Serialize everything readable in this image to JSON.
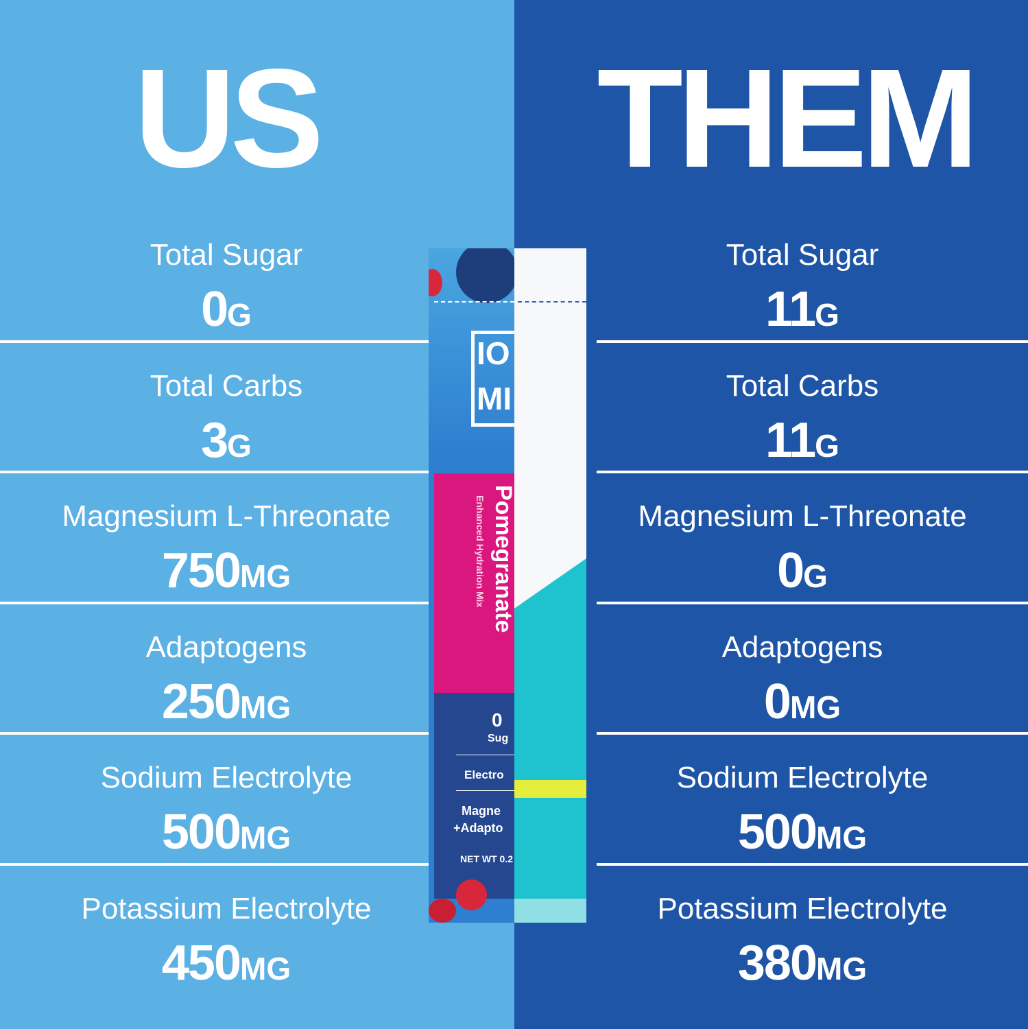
{
  "header": {
    "left_title": "US",
    "right_title": "THEM"
  },
  "rows": [
    {
      "label": "Total Sugar",
      "us": {
        "amount": "0",
        "unit": "G"
      },
      "them": {
        "amount": "11",
        "unit": "G"
      }
    },
    {
      "label": "Total Carbs",
      "us": {
        "amount": "3",
        "unit": "G"
      },
      "them": {
        "amount": "11",
        "unit": "G"
      }
    },
    {
      "label": "Magnesium L-Threonate",
      "us": {
        "amount": "750",
        "unit": "MG"
      },
      "them": {
        "amount": "0",
        "unit": "G"
      }
    },
    {
      "label": "Adaptogens",
      "us": {
        "amount": "250",
        "unit": "MG"
      },
      "them": {
        "amount": "0",
        "unit": "MG"
      }
    },
    {
      "label": "Sodium Electrolyte",
      "us": {
        "amount": "500",
        "unit": "MG"
      },
      "them": {
        "amount": "500",
        "unit": "MG"
      }
    },
    {
      "label": "Potassium Electrolyte",
      "us": {
        "amount": "450",
        "unit": "MG"
      },
      "them": {
        "amount": "380",
        "unit": "MG"
      }
    }
  ],
  "packet": {
    "logo_top": "IO",
    "logo_bottom": "MI",
    "flavor": "Pomegranate",
    "subtitle": "Enhanced Hydration Mix",
    "claim_number": "0",
    "claim_word": "Sug",
    "line1": "Electro",
    "line2": "Magne",
    "line3": "+Adapto",
    "net_weight": "NET WT 0.2"
  }
}
